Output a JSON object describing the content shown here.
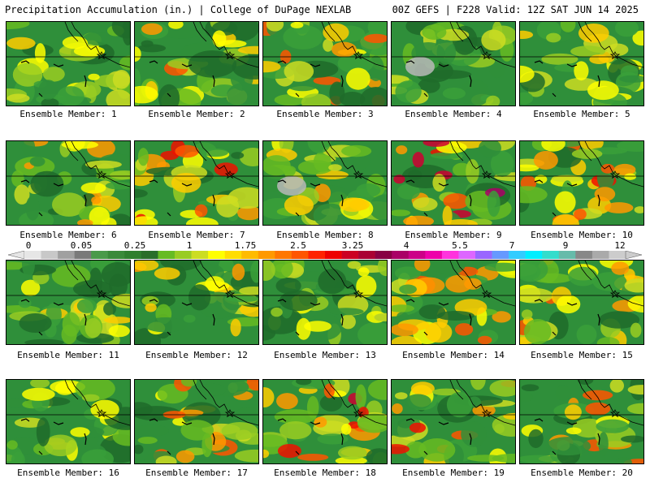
{
  "header": {
    "left": "Precipitation Accumulation (in.) | College of DuPage NEXLAB",
    "right": "00Z GEFS | F228 Valid: 12Z SAT JUN 14 2025"
  },
  "colorbar": {
    "labels": [
      "0",
      "0.05",
      "0.25",
      "1",
      "1.75",
      "2.5",
      "3.25",
      "4",
      "5.5",
      "7",
      "9",
      "12"
    ],
    "colors": [
      "#e6e6e6",
      "#c8c8c8",
      "#a0a0a0",
      "#7a7a7a",
      "#4a9a4a",
      "#3a8a3a",
      "#2f7f2f",
      "#2a6e2a",
      "#66bb22",
      "#99cc22",
      "#ccdd22",
      "#ffff00",
      "#ffdd00",
      "#ffbb00",
      "#ff9900",
      "#ff7700",
      "#ff5500",
      "#ff2200",
      "#ee0000",
      "#cc0022",
      "#aa0033",
      "#880044",
      "#aa0066",
      "#cc0088",
      "#ee00aa",
      "#ff33dd",
      "#dd66ff",
      "#9966ff",
      "#6699ff",
      "#33ccff",
      "#00eeff",
      "#33ddcc",
      "#66bbaa",
      "#888888",
      "#aaaaaa",
      "#cccccc"
    ]
  },
  "panels": [
    {
      "caption": "Ensemble Member: 1",
      "intensity": 0.35,
      "seed": 1
    },
    {
      "caption": "Ensemble Member: 2",
      "intensity": 0.55,
      "seed": 2
    },
    {
      "caption": "Ensemble Member: 3",
      "intensity": 0.6,
      "seed": 3
    },
    {
      "caption": "Ensemble Member: 4",
      "intensity": 0.2,
      "seed": 4
    },
    {
      "caption": "Ensemble Member: 5",
      "intensity": 0.4,
      "seed": 5
    },
    {
      "caption": "Ensemble Member: 6",
      "intensity": 0.45,
      "seed": 6
    },
    {
      "caption": "Ensemble Member: 7",
      "intensity": 0.7,
      "seed": 7
    },
    {
      "caption": "Ensemble Member: 8",
      "intensity": 0.5,
      "seed": 8
    },
    {
      "caption": "Ensemble Member: 9",
      "intensity": 0.85,
      "seed": 9
    },
    {
      "caption": "Ensemble Member: 10",
      "intensity": 0.65,
      "seed": 10
    },
    {
      "caption": "Ensemble Member: 11",
      "intensity": 0.4,
      "seed": 11
    },
    {
      "caption": "Ensemble Member: 12",
      "intensity": 0.45,
      "seed": 12
    },
    {
      "caption": "Ensemble Member: 13",
      "intensity": 0.35,
      "seed": 13
    },
    {
      "caption": "Ensemble Member: 14",
      "intensity": 0.65,
      "seed": 14
    },
    {
      "caption": "Ensemble Member: 15",
      "intensity": 0.55,
      "seed": 15
    },
    {
      "caption": "Ensemble Member: 16",
      "intensity": 0.4,
      "seed": 16
    },
    {
      "caption": "Ensemble Member: 17",
      "intensity": 0.6,
      "seed": 17
    },
    {
      "caption": "Ensemble Member: 18",
      "intensity": 0.75,
      "seed": 18
    },
    {
      "caption": "Ensemble Member: 19",
      "intensity": 0.7,
      "seed": 19
    },
    {
      "caption": "Ensemble Member: 20",
      "intensity": 0.6,
      "seed": 20
    }
  ]
}
